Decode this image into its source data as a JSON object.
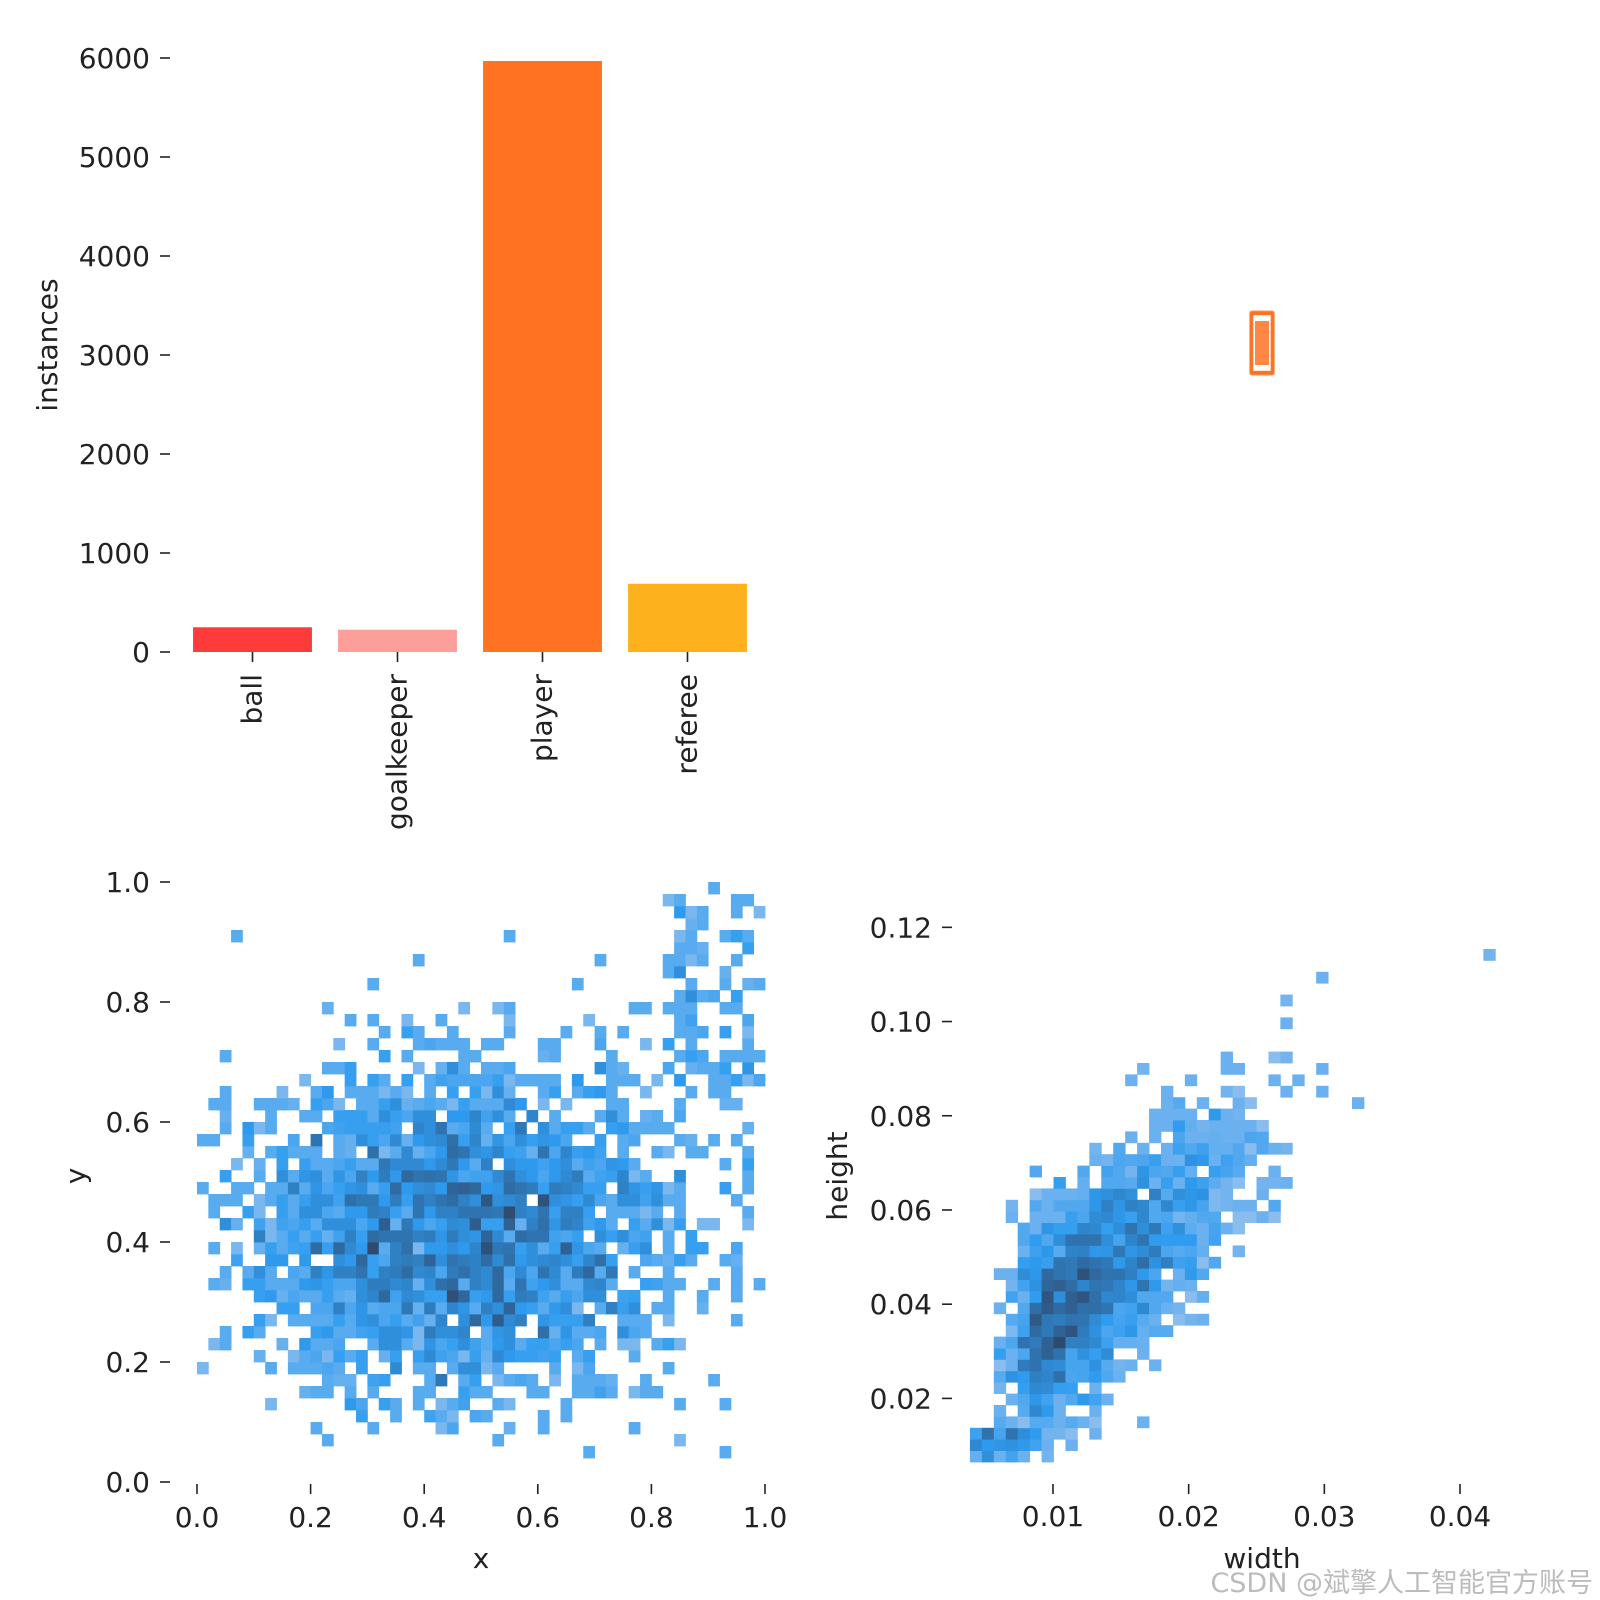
{
  "chart_data": [
    {
      "type": "bar",
      "categories": [
        "ball",
        "goalkeeper",
        "player",
        "referee"
      ],
      "values": [
        250,
        225,
        5970,
        690
      ],
      "colors": [
        "#fe3b3b",
        "#fd9f99",
        "#fe7222",
        "#fdb21d"
      ],
      "ylabel": "instances",
      "ylim": [
        0,
        6000
      ],
      "yticks": [
        "0",
        "1000",
        "2000",
        "3000",
        "4000",
        "5000",
        "6000"
      ],
      "yticks_values": [
        0,
        1000,
        2000,
        3000,
        4000,
        5000,
        6000
      ]
    },
    {
      "type": "scatter",
      "note_kind": "box-overlay",
      "color": "#fe7222",
      "x": [
        0.5
      ],
      "y": [
        0.5
      ]
    },
    {
      "type": "heatmap",
      "xlabel": "x",
      "ylabel": "y",
      "xlim": [
        0.0,
        1.0
      ],
      "ylim": [
        0.0,
        1.0
      ],
      "xticks": [
        "0.0",
        "0.2",
        "0.4",
        "0.6",
        "0.8",
        "1.0"
      ],
      "xticks_values": [
        0.0,
        0.2,
        0.4,
        0.6,
        0.8,
        1.0
      ],
      "yticks": [
        "0.0",
        "0.2",
        "0.4",
        "0.6",
        "0.8",
        "1.0"
      ],
      "yticks_values": [
        0.0,
        0.2,
        0.4,
        0.6,
        0.8,
        1.0
      ],
      "bins": 50,
      "center": [
        0.47,
        0.41
      ],
      "spread": [
        0.2,
        0.14
      ]
    },
    {
      "type": "heatmap",
      "xlabel": "width",
      "ylabel": "height",
      "xlim": [
        0.003,
        0.047
      ],
      "ylim": [
        0.0065,
        0.1275
      ],
      "xticks": [
        "0.01",
        "0.02",
        "0.03",
        "0.04"
      ],
      "xticks_values": [
        0.01,
        0.02,
        0.03,
        0.04
      ],
      "yticks": [
        "0.02",
        "0.04",
        "0.06",
        "0.08",
        "0.10",
        "0.12"
      ],
      "yticks_values": [
        0.02,
        0.04,
        0.06,
        0.08,
        0.1,
        0.12
      ],
      "bins": 50,
      "ridge": {
        "x0": 0.008,
        "y0": 0.032,
        "slope": 2.5
      }
    }
  ],
  "colors": {
    "heat_low": "#a9c8ee",
    "heat_mid": "#2f9cef",
    "heat_high": "#2f4a6e"
  },
  "watermark": "CSDN @斌擎人工智能官方账号"
}
